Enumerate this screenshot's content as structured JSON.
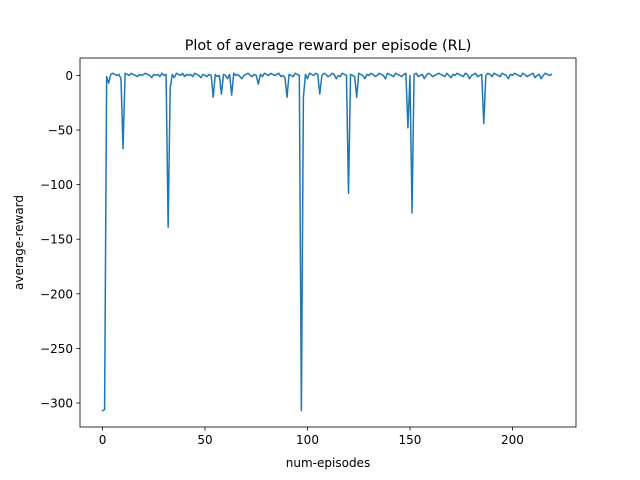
{
  "chart_data": {
    "type": "line",
    "title": "Plot of average reward per episode (RL)",
    "xlabel": "num-episodes",
    "ylabel": "average-reward",
    "xlim": [
      -11,
      231
    ],
    "ylim": [
      -322,
      16
    ],
    "x_ticks": [
      0,
      50,
      100,
      150,
      200
    ],
    "y_ticks": [
      0,
      -50,
      -100,
      -150,
      -200,
      -250,
      -300
    ],
    "grid": false,
    "legend": "none",
    "line_color": "#1f77b4",
    "series": [
      {
        "values": [
          -307,
          -306,
          -1,
          -7,
          1,
          2,
          1,
          0,
          1,
          -3,
          -67,
          2,
          1,
          0,
          2,
          1,
          0,
          -1,
          1,
          0,
          1,
          2,
          1,
          0,
          -2,
          1,
          0,
          1,
          -1,
          2,
          0,
          1,
          -139,
          -12,
          1,
          -2,
          2,
          1,
          0,
          2,
          -1,
          1,
          0,
          1,
          -1,
          2,
          1,
          0,
          -2,
          1,
          0,
          -1,
          1,
          0,
          -20,
          1,
          -1,
          0,
          -17,
          1,
          0,
          -3,
          1,
          -18,
          2,
          0,
          1,
          -1,
          -3,
          0,
          1,
          2,
          0,
          -1,
          1,
          0,
          -8,
          1,
          -1,
          2,
          1,
          0,
          2,
          1,
          0,
          1,
          2,
          -1,
          0,
          -2,
          -20,
          1,
          0,
          -1,
          2,
          1,
          0,
          -307,
          -20,
          1,
          -3,
          2,
          1,
          0,
          2,
          1,
          -17,
          0,
          2,
          1,
          -1,
          0,
          2,
          1,
          -3,
          0,
          -1,
          2,
          1,
          0,
          -108,
          1,
          0,
          -1,
          -20,
          2,
          1,
          0,
          -3,
          1,
          0,
          2,
          1,
          -1,
          0,
          2,
          1,
          0,
          -3,
          2,
          1,
          0,
          -1,
          2,
          1,
          0,
          -1,
          1,
          2,
          -48,
          0,
          -126,
          1,
          2,
          -1,
          0,
          1,
          -3,
          0,
          2,
          1,
          -1,
          0,
          1,
          2,
          1,
          0,
          -1,
          2,
          0,
          -2,
          1,
          0,
          2,
          1,
          0,
          -1,
          2,
          1,
          -3,
          0,
          1,
          2,
          -1,
          0,
          1,
          -44,
          0,
          2,
          1,
          -1,
          2,
          1,
          0,
          -1,
          2,
          1,
          0,
          -3,
          1,
          0,
          2,
          1,
          0,
          -1,
          2,
          1,
          -1,
          0,
          1,
          2,
          -2,
          0,
          1,
          -3,
          0,
          2,
          1,
          0,
          1
        ]
      }
    ]
  }
}
